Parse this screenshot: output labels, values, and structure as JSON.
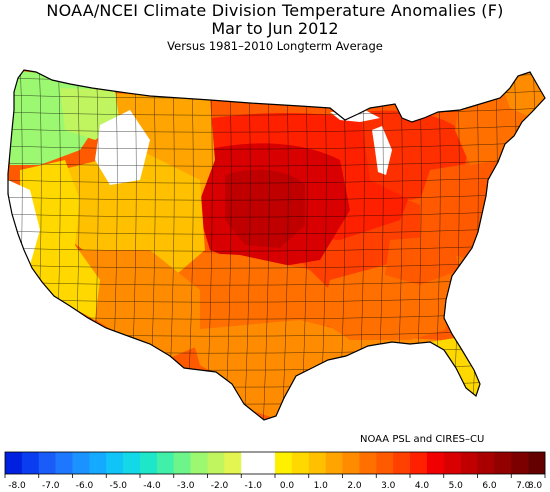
{
  "header": {
    "title_line1": "NOAA/NCEI Climate Division Temperature Anomalies (F)",
    "title_line2": "Mar to Jun 2012",
    "subtitle": "Versus 1981–2010 Longterm Average"
  },
  "credit": "NOAA PSL and CIRES–CU",
  "legend": {
    "tick_labels": [
      "-8.0",
      "-7.0",
      "-6.0",
      "-5.0",
      "-4.0",
      "-3.0",
      "-2.0",
      "-1.0",
      "0.0",
      "1.0",
      "2.0",
      "3.0",
      "4.0",
      "5.0",
      "6.0",
      "7.0",
      "8.0"
    ],
    "bins": [
      {
        "color": "#0020e0"
      },
      {
        "color": "#0a3cf0"
      },
      {
        "color": "#1a5cf8"
      },
      {
        "color": "#1e78ff"
      },
      {
        "color": "#1a92ff"
      },
      {
        "color": "#14aaff"
      },
      {
        "color": "#10c4f8"
      },
      {
        "color": "#12d8e8"
      },
      {
        "color": "#1ee6c8"
      },
      {
        "color": "#40f0a8"
      },
      {
        "color": "#6ef58a"
      },
      {
        "color": "#9cf870"
      },
      {
        "color": "#c0f560"
      },
      {
        "color": "#e2f550"
      },
      {
        "color": "#ffffff"
      },
      {
        "color": "#ffffff"
      },
      {
        "color": "#fff000"
      },
      {
        "color": "#ffd800"
      },
      {
        "color": "#ffc000"
      },
      {
        "color": "#ffa400"
      },
      {
        "color": "#ff8c00"
      },
      {
        "color": "#ff7000"
      },
      {
        "color": "#ff5a00"
      },
      {
        "color": "#ff4000"
      },
      {
        "color": "#ff2000"
      },
      {
        "color": "#f00000"
      },
      {
        "color": "#d80000"
      },
      {
        "color": "#c00000"
      },
      {
        "color": "#a80000"
      },
      {
        "color": "#920000"
      },
      {
        "color": "#7c0000"
      },
      {
        "color": "#640000"
      }
    ]
  },
  "map": {
    "regions": [
      {
        "name": "pacific-northwest-coast",
        "color": "#9cf870"
      },
      {
        "name": "inland-northwest",
        "color": "#c0f560"
      },
      {
        "name": "northern-california-coast",
        "color": "#ffffff"
      },
      {
        "name": "idaho-neutral",
        "color": "#ffffff"
      },
      {
        "name": "california-interior",
        "color": "#ffd800"
      },
      {
        "name": "intermountain-west",
        "color": "#ffc000"
      },
      {
        "name": "northern-rockies",
        "color": "#ffa400"
      },
      {
        "name": "southwest",
        "color": "#ff8c00"
      },
      {
        "name": "southern-plains",
        "color": "#ff7000"
      },
      {
        "name": "gulf-coast",
        "color": "#ff8c00"
      },
      {
        "name": "florida",
        "color": "#ffd800"
      },
      {
        "name": "southeast",
        "color": "#ff7000"
      },
      {
        "name": "ohio-valley",
        "color": "#ff4000"
      },
      {
        "name": "upper-midwest",
        "color": "#ff2000"
      },
      {
        "name": "central-plains-core",
        "color": "#d80000"
      },
      {
        "name": "plains-hot-spot",
        "color": "#c00000"
      },
      {
        "name": "great-lakes",
        "color": "#ff3000"
      },
      {
        "name": "new-england",
        "color": "#ff7000"
      },
      {
        "name": "maine",
        "color": "#ff8c00"
      },
      {
        "name": "mid-atlantic",
        "color": "#ff5a00"
      },
      {
        "name": "southern-appalachians",
        "color": "#ff5a00"
      }
    ]
  }
}
